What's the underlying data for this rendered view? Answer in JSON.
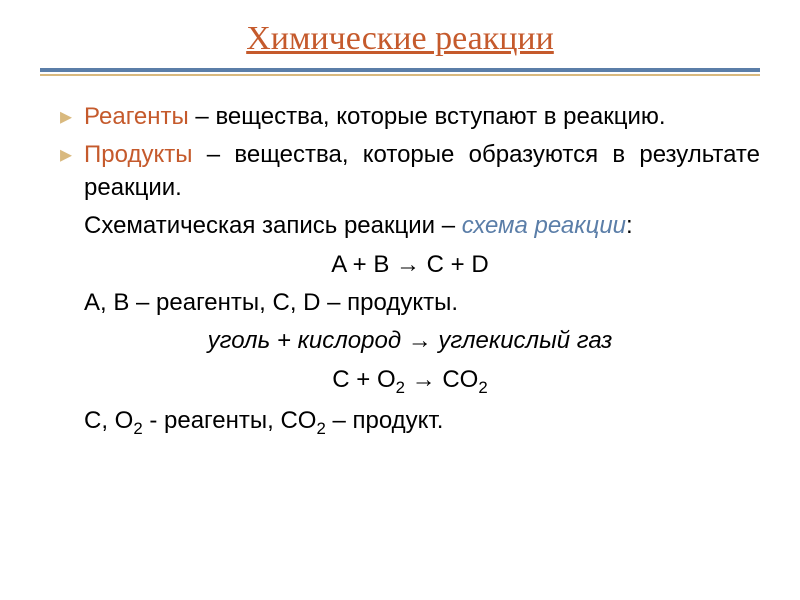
{
  "colors": {
    "title": "#c55a2c",
    "hr_top": "#5b7ea8",
    "hr_bottom": "#d9b97e",
    "bullet": "#d9b97e",
    "term_reag": "#c55a2c",
    "term_prod": "#c55a2c",
    "scheme_text": "#5b7ea8",
    "body_text": "#000000"
  },
  "title": "Химические реакции",
  "fonts": {
    "title_size": 34,
    "body_size": 24
  },
  "bullet1": {
    "term": "Реагенты",
    "rest": " – вещества, которые вступают в реакцию."
  },
  "bullet2": {
    "term": "Продукты",
    "rest": " – вещества, которые образуются в результате реакции."
  },
  "line3": {
    "prefix": "Схематическая запись реакции – ",
    "italic": "схема реакции",
    "suffix": ":"
  },
  "eq1": "A  + B → C + D",
  "line5": "A, B – реагенты, C, D – продукты.",
  "line6": "уголь + кислород → углекислый газ",
  "eq2": {
    "p1": "C + O",
    "s1": "2",
    "p2": " → CO",
    "s2": "2"
  },
  "line8": {
    "p1": "C, O",
    "s1": "2",
    "p2": "  - реагенты, CO",
    "s2": "2",
    "p3": " – продукт."
  }
}
